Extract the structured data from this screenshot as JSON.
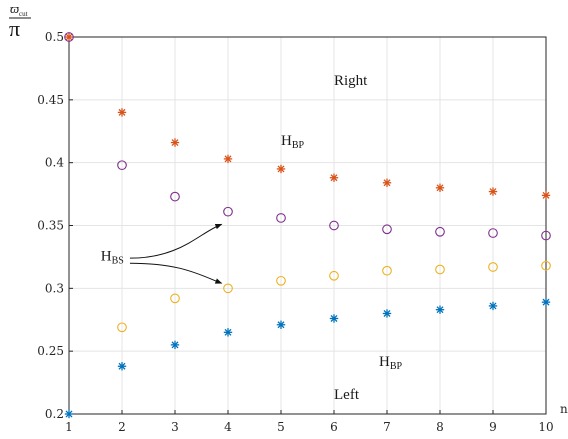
{
  "chart_data": {
    "type": "scatter",
    "title": "",
    "xlabel": "n",
    "ylabel": {
      "numerator": "ϖ",
      "numerator_sub": "cut",
      "denominator": "π"
    },
    "xlim": [
      1,
      10
    ],
    "ylim": [
      0.2,
      0.5
    ],
    "x_ticks": [
      "1",
      "2",
      "3",
      "4",
      "5",
      "6",
      "7",
      "8",
      "9",
      "10"
    ],
    "y_ticks": [
      "0.2",
      "0.25",
      "0.3",
      "0.35",
      "0.4",
      "0.45",
      "0.5"
    ],
    "grid": true,
    "legend": "none",
    "series": [
      {
        "marker": "asterisk",
        "color": "#D95319",
        "points": [
          [
            1,
            0.5
          ],
          [
            2,
            0.44
          ],
          [
            3,
            0.416
          ],
          [
            4,
            0.403
          ],
          [
            5,
            0.395
          ],
          [
            6,
            0.388
          ],
          [
            7,
            0.384
          ],
          [
            8,
            0.38
          ],
          [
            9,
            0.377
          ],
          [
            10,
            0.374
          ]
        ]
      },
      {
        "marker": "circle",
        "color": "#7E2F8E",
        "points": [
          [
            1,
            0.5
          ],
          [
            2,
            0.398
          ],
          [
            3,
            0.373
          ],
          [
            4,
            0.361
          ],
          [
            5,
            0.356
          ],
          [
            6,
            0.35
          ],
          [
            7,
            0.347
          ],
          [
            8,
            0.345
          ],
          [
            9,
            0.344
          ],
          [
            10,
            0.342
          ]
        ]
      },
      {
        "marker": "circle",
        "color": "#EDB120",
        "points": [
          [
            2,
            0.269
          ],
          [
            3,
            0.292
          ],
          [
            4,
            0.3
          ],
          [
            5,
            0.306
          ],
          [
            6,
            0.31
          ],
          [
            7,
            0.314
          ],
          [
            8,
            0.315
          ],
          [
            9,
            0.317
          ],
          [
            10,
            0.318
          ]
        ]
      },
      {
        "marker": "asterisk",
        "color": "#0072BD",
        "points": [
          [
            1,
            0.2
          ],
          [
            2,
            0.238
          ],
          [
            3,
            0.255
          ],
          [
            4,
            0.265
          ],
          [
            5,
            0.271
          ],
          [
            6,
            0.276
          ],
          [
            7,
            0.28
          ],
          [
            8,
            0.283
          ],
          [
            9,
            0.286
          ],
          [
            10,
            0.289
          ]
        ]
      }
    ],
    "annotations": [
      {
        "text": "Right",
        "x": 6,
        "y": 0.462
      },
      {
        "text": "H",
        "sub": "BP",
        "x": 5,
        "y": 0.414
      },
      {
        "text": "H",
        "sub": "BS",
        "x": 1.6,
        "y": 0.322
      },
      {
        "text": "H",
        "sub": "BP",
        "x": 6.85,
        "y": 0.238
      },
      {
        "text": "Left",
        "x": 6,
        "y": 0.212
      }
    ],
    "arrows": [
      {
        "from": [
          2.15,
          0.324
        ],
        "to": [
          3.88,
          0.351
        ]
      },
      {
        "from": [
          2.15,
          0.32
        ],
        "to": [
          3.88,
          0.304
        ]
      }
    ]
  }
}
